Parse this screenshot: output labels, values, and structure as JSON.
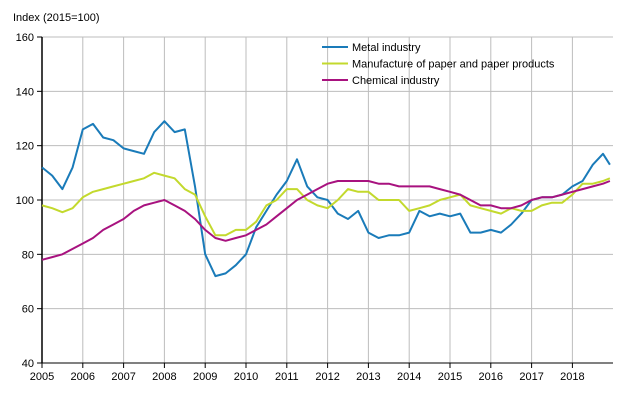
{
  "chart_data": {
    "type": "line",
    "title": "",
    "ylabel": "Index (2015=100)",
    "xlabel": "",
    "ylim": [
      40,
      160
    ],
    "yticks": [
      40,
      60,
      80,
      100,
      120,
      140,
      160
    ],
    "xlim": [
      2005,
      2019
    ],
    "xticks": [
      "2005",
      "2006",
      "2007",
      "2008",
      "2009",
      "2010",
      "2011",
      "2012",
      "2013",
      "2014",
      "2015",
      "2016",
      "2017",
      "2018"
    ],
    "grid": true,
    "legend_position": "top-right",
    "x": [
      2005,
      2005.25,
      2005.5,
      2005.75,
      2006,
      2006.25,
      2006.5,
      2006.75,
      2007,
      2007.25,
      2007.5,
      2007.75,
      2008,
      2008.25,
      2008.5,
      2008.75,
      2009,
      2009.25,
      2009.5,
      2009.75,
      2010,
      2010.25,
      2010.5,
      2010.75,
      2011,
      2011.25,
      2011.5,
      2011.75,
      2012,
      2012.25,
      2012.5,
      2012.75,
      2013,
      2013.25,
      2013.5,
      2013.75,
      2014,
      2014.25,
      2014.5,
      2014.75,
      2015,
      2015.25,
      2015.5,
      2015.75,
      2016,
      2016.25,
      2016.5,
      2016.75,
      2017,
      2017.25,
      2017.5,
      2017.75,
      2018,
      2018.25,
      2018.5,
      2018.75,
      2018.92
    ],
    "series": [
      {
        "name": "Metal industry",
        "color": "#1a7bb9",
        "values": [
          112,
          109,
          104,
          112,
          126,
          128,
          123,
          122,
          119,
          118,
          117,
          125,
          129,
          125,
          126,
          105,
          80,
          72,
          73,
          76,
          80,
          90,
          96,
          102,
          107,
          115,
          105,
          101,
          100,
          95,
          93,
          96,
          88,
          86,
          87,
          87,
          88,
          96,
          94,
          95,
          94,
          95,
          88,
          88,
          89,
          88,
          91,
          95,
          100,
          101,
          101,
          102,
          105,
          107,
          113,
          117,
          113
        ]
      },
      {
        "name": "Manufacture of paper and paper products",
        "color": "#c3d92d",
        "values": [
          98,
          97,
          95.5,
          97,
          101,
          103,
          104,
          105,
          106,
          107,
          108,
          110,
          109,
          108,
          104,
          102,
          94,
          87,
          87,
          89,
          89,
          92,
          98,
          100,
          104,
          104,
          100,
          98,
          97,
          100,
          104,
          103,
          103,
          100,
          100,
          100,
          96,
          97,
          98,
          100,
          101,
          102,
          98,
          97,
          96,
          95,
          97,
          96,
          96,
          98,
          99,
          99,
          102,
          106,
          106,
          107,
          108
        ]
      },
      {
        "name": "Chemical industry",
        "color": "#a8127f",
        "values": [
          78,
          79,
          80,
          82,
          84,
          86,
          89,
          91,
          93,
          96,
          98,
          99,
          100,
          98,
          96,
          93,
          89,
          86,
          85,
          86,
          87,
          89,
          91,
          94,
          97,
          100,
          102,
          104,
          106,
          107,
          107,
          107,
          107,
          106,
          106,
          105,
          105,
          105,
          105,
          104,
          103,
          102,
          100,
          98,
          98,
          97,
          97,
          98,
          100,
          101,
          101,
          102,
          103,
          104,
          105,
          106,
          107
        ]
      }
    ]
  }
}
